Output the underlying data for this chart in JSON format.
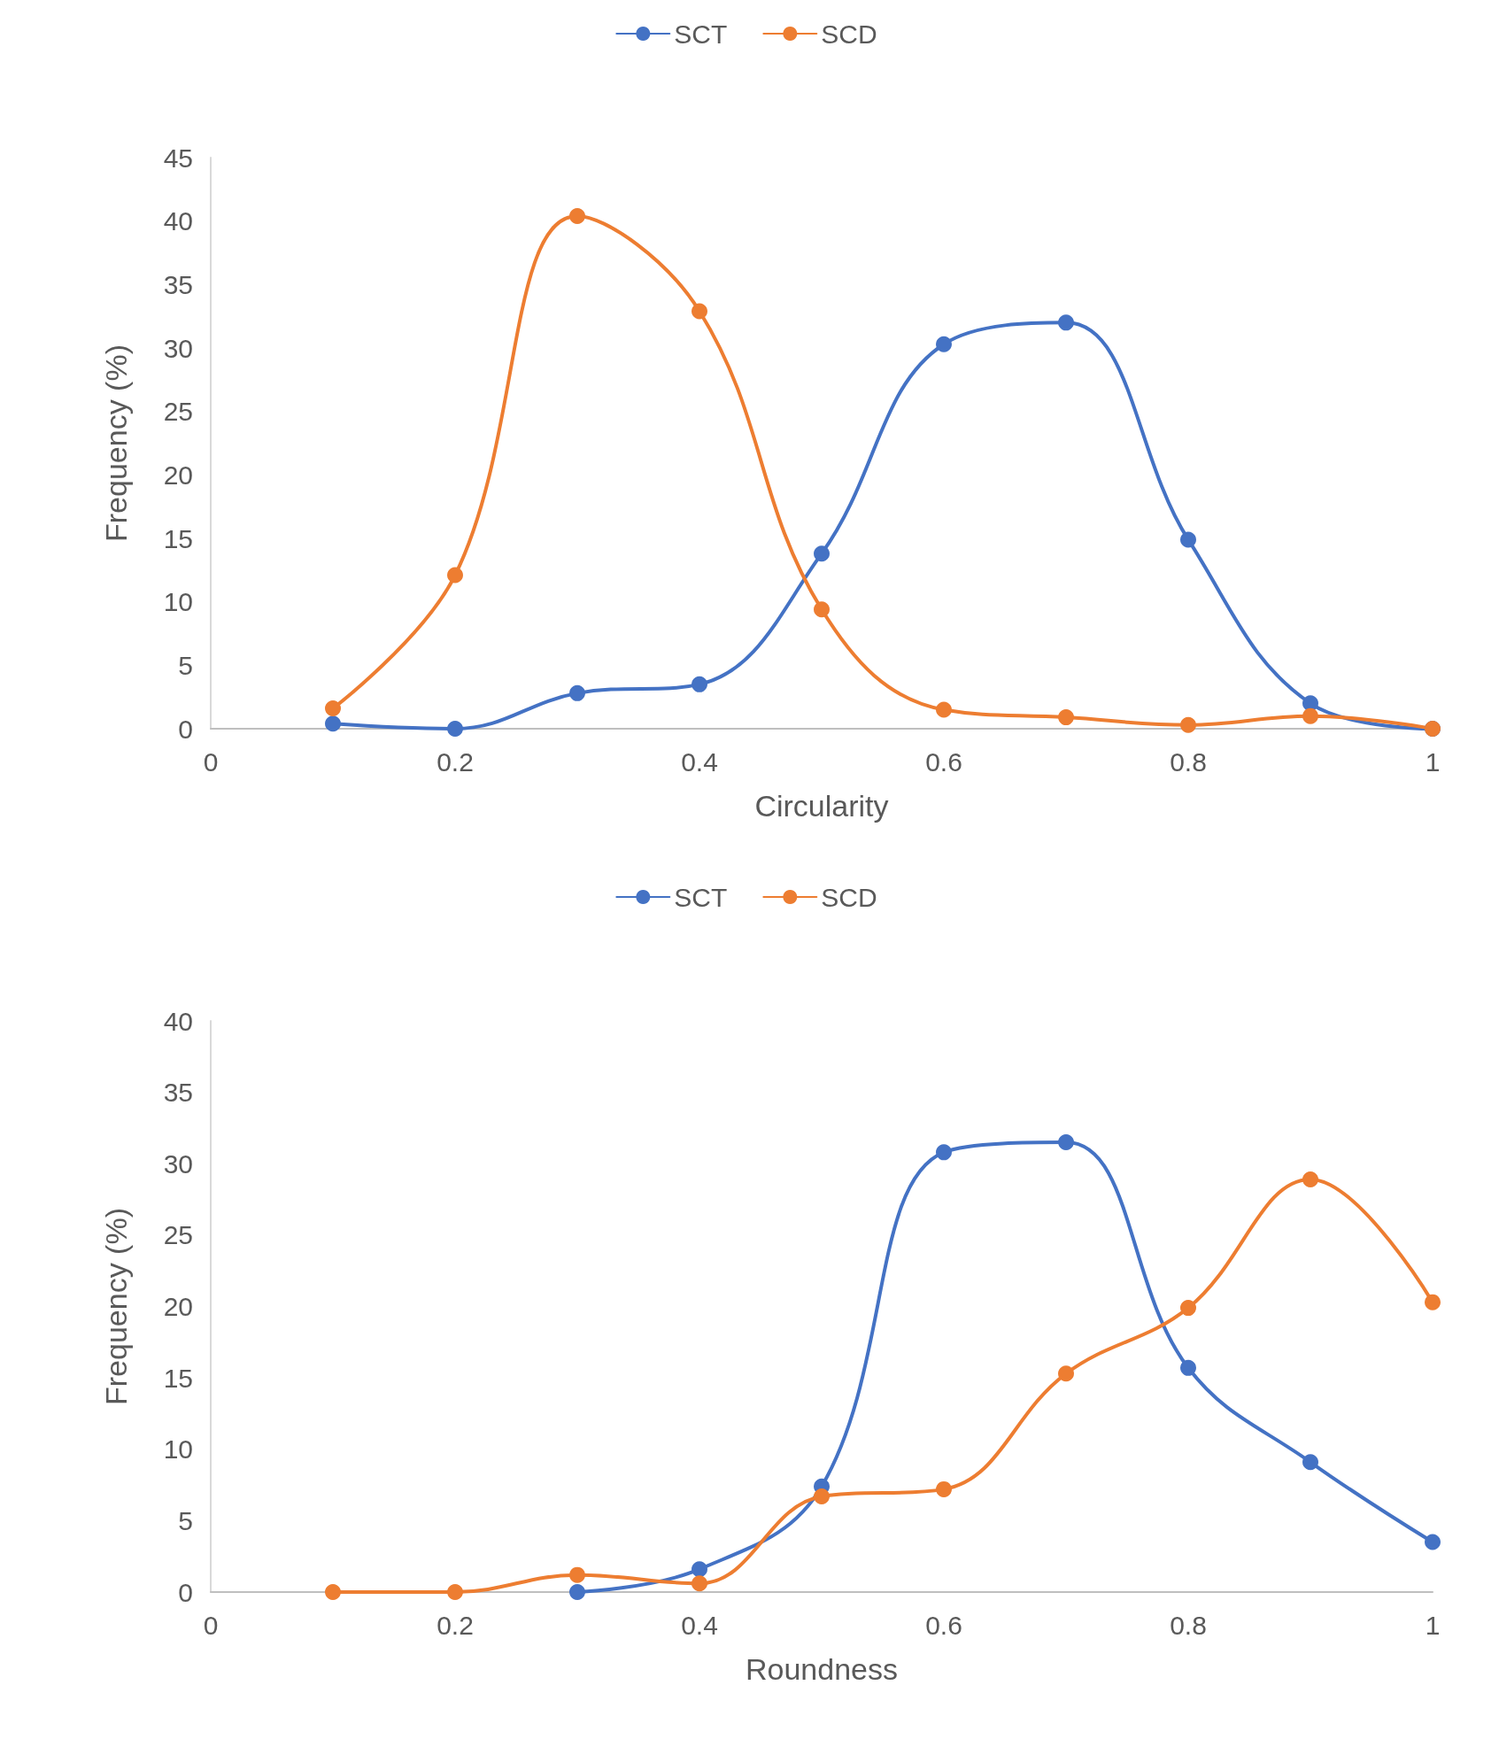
{
  "chart_data": [
    {
      "type": "line",
      "xlabel": "Circularity",
      "ylabel": "Frequency (%)",
      "x": [
        0.1,
        0.2,
        0.3,
        0.4,
        0.5,
        0.6,
        0.7,
        0.8,
        0.9,
        1
      ],
      "xlim": [
        0,
        1
      ],
      "xticks": [
        0,
        0.2,
        0.4,
        0.6,
        0.8,
        1
      ],
      "ylim": [
        0,
        45
      ],
      "yticks": [
        0,
        5,
        10,
        15,
        20,
        25,
        30,
        35,
        40,
        45
      ],
      "grid": false,
      "legend": "top",
      "marker": "circle",
      "line_style": "solid",
      "series": [
        {
          "name": "SCT",
          "color": "#4472c4",
          "values": [
            0.4,
            0,
            2.8,
            3.5,
            13.8,
            30.3,
            32,
            14.9,
            2,
            0
          ]
        },
        {
          "name": "SCD",
          "color": "#ed7d31",
          "values": [
            1.6,
            12.1,
            40.4,
            32.9,
            9.4,
            1.5,
            0.9,
            0.3,
            1,
            0
          ]
        }
      ]
    },
    {
      "type": "line",
      "xlabel": "Roundness",
      "ylabel": "Frequency (%)",
      "x": [
        0.1,
        0.2,
        0.3,
        0.4,
        0.5,
        0.6,
        0.7,
        0.8,
        0.9,
        1
      ],
      "xlim": [
        0,
        1
      ],
      "xticks": [
        0,
        0.2,
        0.4,
        0.6,
        0.8,
        1
      ],
      "ylim": [
        0,
        40
      ],
      "yticks": [
        0,
        5,
        10,
        15,
        20,
        25,
        30,
        35,
        40
      ],
      "grid": false,
      "legend": "top",
      "marker": "circle",
      "line_style": "solid",
      "series": [
        {
          "name": "SCT",
          "color": "#4472c4",
          "values": [
            null,
            null,
            0,
            1.6,
            7.4,
            30.8,
            31.5,
            15.7,
            9.1,
            3.5
          ]
        },
        {
          "name": "SCD",
          "color": "#ed7d31",
          "values": [
            0,
            0,
            1.2,
            0.6,
            6.7,
            7.2,
            15.3,
            19.9,
            28.9,
            20.3
          ]
        }
      ]
    }
  ]
}
